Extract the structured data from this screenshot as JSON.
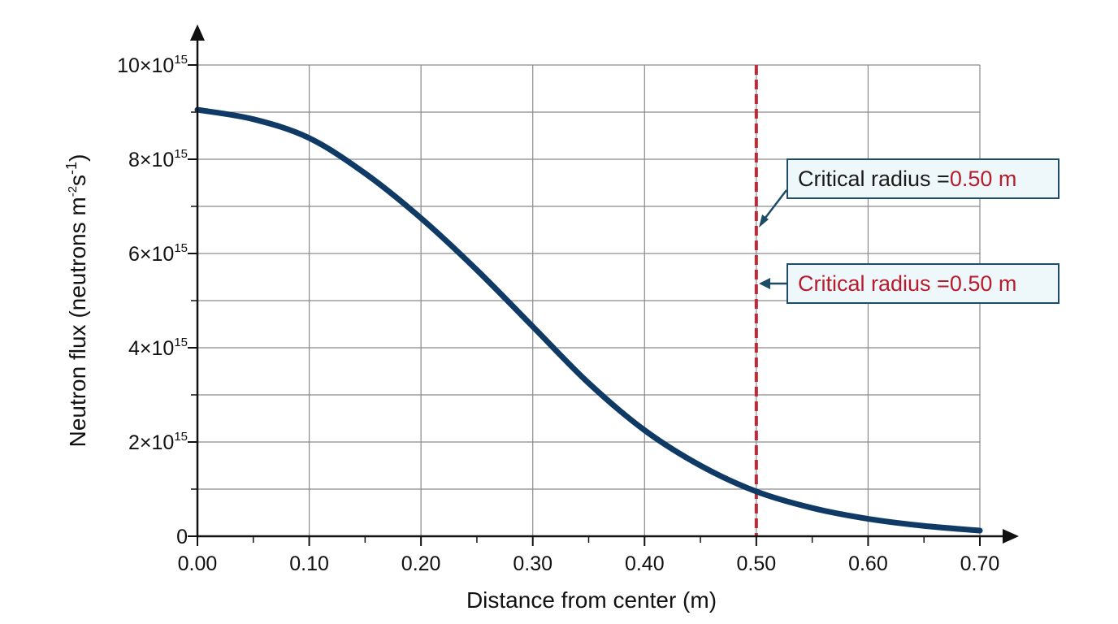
{
  "chart_data": {
    "type": "line",
    "xlabel": "Distance from center (m)",
    "ylabel": {
      "base": "Neutron flux (neutrons m",
      "exp1": "-2",
      "mid": "s",
      "exp2": "-1",
      "end": ")"
    },
    "xlim": [
      0,
      0.7
    ],
    "ylim": [
      0,
      1e+16
    ],
    "x_ticks": [
      "0.00",
      "0.10",
      "0.20",
      "0.30",
      "0.40",
      "0.50",
      "0.60",
      "0.70"
    ],
    "y_ticks": [
      {
        "value": 0,
        "mantissa": "0",
        "exp": ""
      },
      {
        "value": 2000000000000000.0,
        "mantissa": "2×10",
        "exp": "15"
      },
      {
        "value": 4000000000000000.0,
        "mantissa": "4×10",
        "exp": "15"
      },
      {
        "value": 6000000000000000.0,
        "mantissa": "6×10",
        "exp": "15"
      },
      {
        "value": 8000000000000000.0,
        "mantissa": "8×10",
        "exp": "15"
      },
      {
        "value": 1e+16,
        "mantissa": "10×10",
        "exp": "15"
      }
    ],
    "grid": true,
    "series": [
      {
        "color": "#0f3a66",
        "x": [
          0.0,
          0.05,
          0.1,
          0.15,
          0.2,
          0.25,
          0.3,
          0.35,
          0.4,
          0.45,
          0.5,
          0.55,
          0.6,
          0.65,
          0.7
        ],
        "y": [
          9050000000000000.0,
          8850000000000000.0,
          8450000000000000.0,
          7700000000000000.0,
          6750000000000000.0,
          5650000000000000.0,
          4450000000000000.0,
          3250000000000000.0,
          2250000000000000.0,
          1500000000000000.0,
          950000000000000.0,
          600000000000000.0,
          370000000000000.0,
          220000000000000.0,
          120000000000000.0
        ]
      }
    ],
    "vline": {
      "x": 0.5,
      "color": "#c0293a"
    },
    "annotations": [
      {
        "prefix": "Critical radius = ",
        "value": "0.50 m",
        "style": "dark-prefix"
      },
      {
        "prefix": "Critical radius = ",
        "value": "0.50 m",
        "style": "all-red"
      }
    ]
  },
  "colors": {
    "axis": "#111111",
    "grid": "#8a8a8a",
    "line": "#0f3a66",
    "critical": "#c0293a",
    "callout_border": "#1e4c66",
    "callout_fill": "#eef8fb"
  }
}
